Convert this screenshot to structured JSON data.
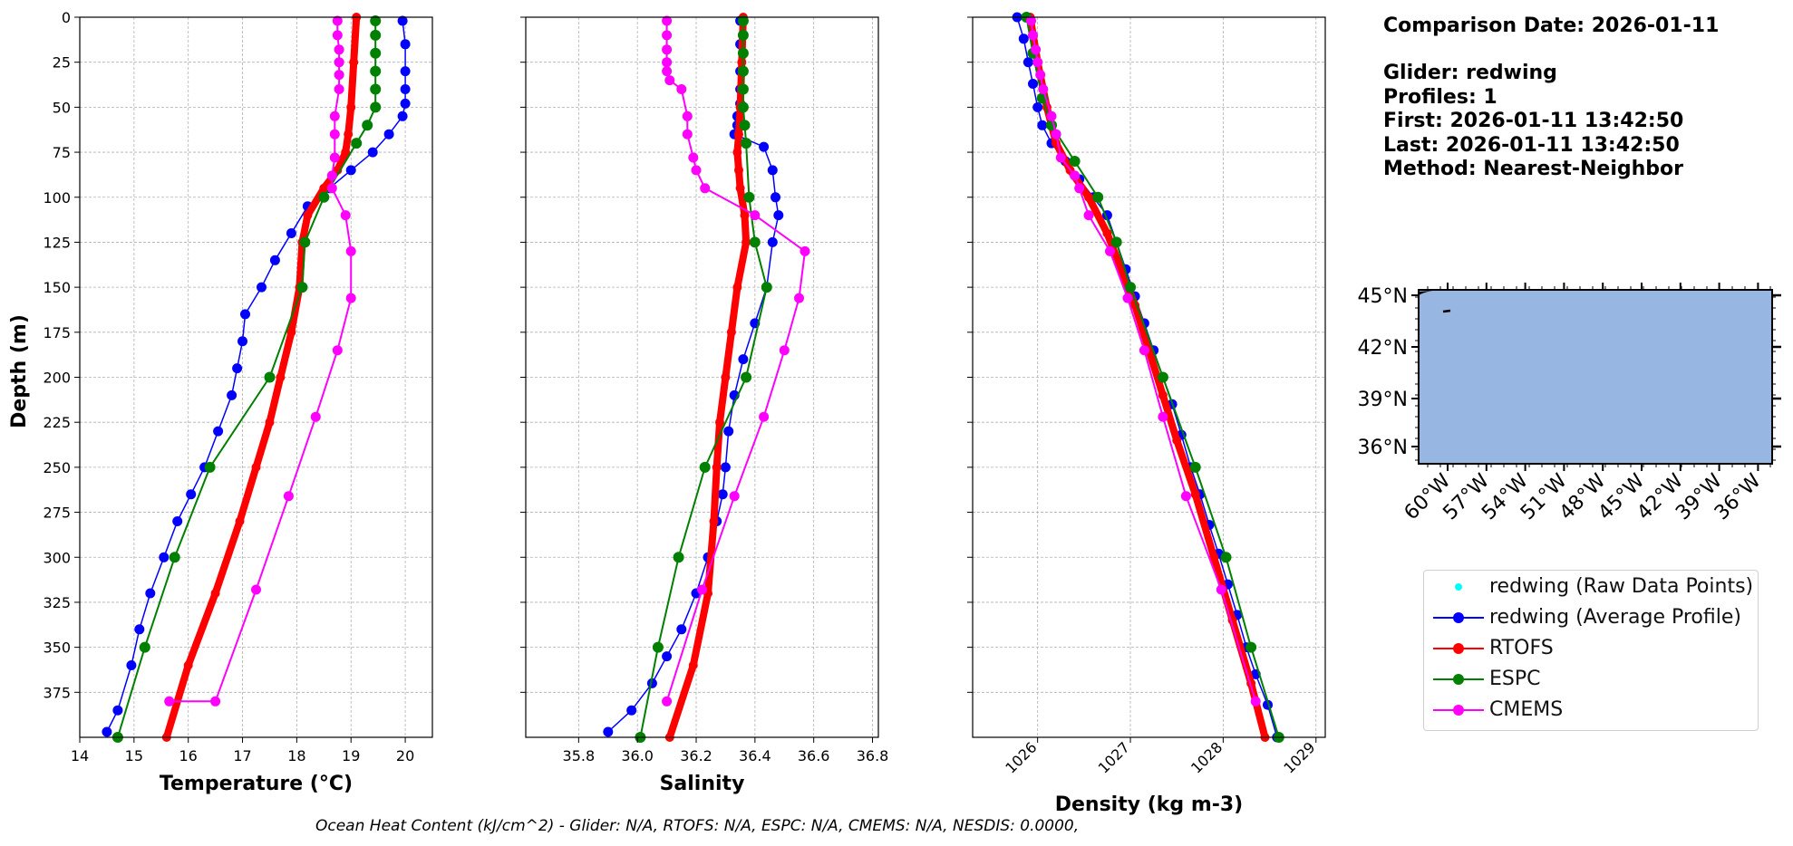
{
  "info": {
    "comparison_date": "Comparison Date: 2026-01-11",
    "glider": "Glider: redwing",
    "profiles": "Profiles: 1",
    "first": "First: 2026-01-11 13:42:50",
    "last": "Last: 2026-01-11 13:42:50",
    "method": "Method: Nearest-Neighbor"
  },
  "footer": "Ocean Heat Content (kJ/cm^2) - Glider: N/A,  RTOFS: N/A,  ESPC: N/A,  CMEMS: N/A,  NESDIS: 0.0000,",
  "legend": [
    {
      "label": "redwing (Raw Data Points)",
      "color": "#00ffff",
      "style": "dot"
    },
    {
      "label": "redwing (Average Profile)",
      "color": "#0000ff",
      "style": "line-marker"
    },
    {
      "label": "RTOFS",
      "color": "#ff0000",
      "style": "line-marker"
    },
    {
      "label": "ESPC",
      "color": "#008000",
      "style": "line-marker"
    },
    {
      "label": "CMEMS",
      "color": "#ff00ff",
      "style": "line-marker"
    }
  ],
  "colors": {
    "glider": "#0000ff",
    "rtofs": "#ff0000",
    "espc": "#008000",
    "cmems": "#ff00ff",
    "raw": "#00ffff",
    "map_ocean": "#97b6e1"
  },
  "chart_data": [
    {
      "type": "line",
      "xlabel": "Temperature (°C)",
      "ylabel": "Depth (m)",
      "xlim": [
        14,
        20.5
      ],
      "ylim": [
        400,
        0
      ],
      "xticks": [
        14,
        15,
        16,
        17,
        18,
        19,
        20
      ],
      "xtick_labels": [
        "14",
        "15",
        "16",
        "17",
        "18",
        "19",
        "20"
      ],
      "yticks": [
        0,
        25,
        50,
        75,
        100,
        125,
        150,
        175,
        200,
        225,
        250,
        275,
        300,
        325,
        350,
        375
      ],
      "grid": true,
      "series": [
        {
          "name": "redwing (Average Profile)",
          "color": "#0000ff",
          "marker_radius": 5.5,
          "stroke": 1.5,
          "x": [
            19.95,
            20.0,
            20.0,
            20.0,
            20.0,
            19.95,
            19.7,
            19.4,
            19.0,
            18.6,
            18.2,
            17.9,
            17.6,
            17.35,
            17.05,
            17.0,
            16.9,
            16.8,
            16.55,
            16.3,
            16.05,
            15.8,
            15.55,
            15.3,
            15.1,
            14.95,
            14.7,
            14.5
          ],
          "y": [
            2,
            15,
            30,
            40,
            48,
            55,
            65,
            75,
            85,
            95,
            105,
            120,
            135,
            150,
            165,
            180,
            195,
            210,
            230,
            250,
            265,
            280,
            300,
            320,
            340,
            360,
            385,
            397
          ]
        },
        {
          "name": "RTOFS",
          "color": "#ff0000",
          "marker_radius": 5,
          "stroke": 8,
          "x": [
            19.1,
            19.05,
            19.0,
            18.95,
            18.9,
            18.75,
            18.5,
            18.2,
            18.1,
            18.05,
            17.9,
            17.7,
            17.5,
            17.25,
            16.95,
            16.5,
            16.0,
            15.6
          ],
          "y": [
            0,
            25,
            50,
            65,
            75,
            85,
            95,
            110,
            125,
            150,
            175,
            200,
            225,
            250,
            280,
            320,
            360,
            400
          ]
        },
        {
          "name": "ESPC",
          "color": "#008000",
          "marker_radius": 6,
          "stroke": 2,
          "x": [
            19.45,
            19.45,
            19.45,
            19.45,
            19.45,
            19.45,
            19.3,
            19.1,
            18.5,
            18.15,
            18.1,
            17.5,
            16.4,
            15.75,
            15.2,
            14.7
          ],
          "y": [
            2,
            10,
            20,
            30,
            40,
            50,
            60,
            70,
            100,
            125,
            150,
            200,
            250,
            300,
            350,
            400
          ]
        },
        {
          "name": "CMEMS",
          "color": "#ff00ff",
          "marker_radius": 5.5,
          "stroke": 2,
          "x": [
            18.75,
            18.75,
            18.78,
            18.78,
            18.78,
            18.78,
            18.7,
            18.7,
            18.7,
            18.65,
            18.65,
            18.9,
            19.0,
            19.0,
            18.75,
            18.35,
            17.85,
            17.25,
            16.5,
            15.65
          ],
          "y": [
            2,
            10,
            18,
            25,
            32,
            40,
            55,
            65,
            78,
            88,
            95,
            110,
            130,
            156,
            185,
            222,
            266,
            318,
            380,
            380
          ]
        }
      ]
    },
    {
      "type": "line",
      "xlabel": "Salinity",
      "xlim": [
        35.62,
        36.82
      ],
      "ylim": [
        400,
        0
      ],
      "xticks": [
        35.8,
        36.0,
        36.2,
        36.4,
        36.6,
        36.8
      ],
      "xtick_labels": [
        "35.8",
        "36.0",
        "36.2",
        "36.4",
        "36.6",
        "36.8"
      ],
      "grid": true,
      "series": [
        {
          "name": "redwing (Average Profile)",
          "color": "#0000ff",
          "marker_radius": 5.5,
          "stroke": 1.5,
          "x": [
            36.35,
            36.35,
            36.35,
            36.35,
            36.35,
            36.34,
            36.34,
            36.33,
            36.43,
            36.46,
            36.47,
            36.48,
            36.46,
            36.44,
            36.4,
            36.36,
            36.33,
            36.31,
            36.3,
            36.29,
            36.27,
            36.24,
            36.2,
            36.15,
            36.1,
            36.05,
            35.98,
            35.9
          ],
          "y": [
            2,
            15,
            30,
            40,
            48,
            55,
            60,
            65,
            72,
            85,
            100,
            110,
            125,
            150,
            170,
            190,
            210,
            230,
            250,
            265,
            280,
            300,
            320,
            340,
            355,
            370,
            385,
            397
          ]
        },
        {
          "name": "RTOFS",
          "color": "#ff0000",
          "marker_radius": 5,
          "stroke": 8,
          "x": [
            36.36,
            36.355,
            36.35,
            36.345,
            36.34,
            36.345,
            36.35,
            36.365,
            36.37,
            36.34,
            36.32,
            36.3,
            36.28,
            36.27,
            36.26,
            36.24,
            36.19,
            36.11
          ],
          "y": [
            0,
            25,
            50,
            65,
            75,
            85,
            95,
            110,
            125,
            150,
            175,
            200,
            225,
            250,
            280,
            320,
            360,
            400
          ]
        },
        {
          "name": "ESPC",
          "color": "#008000",
          "marker_radius": 6,
          "stroke": 2,
          "x": [
            36.36,
            36.36,
            36.36,
            36.36,
            36.36,
            36.36,
            36.365,
            36.37,
            36.38,
            36.4,
            36.44,
            36.37,
            36.23,
            36.14,
            36.07,
            36.01
          ],
          "y": [
            2,
            10,
            20,
            30,
            40,
            50,
            60,
            70,
            100,
            125,
            150,
            200,
            250,
            300,
            350,
            400
          ]
        },
        {
          "name": "CMEMS",
          "color": "#ff00ff",
          "marker_radius": 5.5,
          "stroke": 2,
          "x": [
            36.1,
            36.1,
            36.1,
            36.1,
            36.1,
            36.11,
            36.15,
            36.17,
            36.17,
            36.19,
            36.2,
            36.23,
            36.4,
            36.57,
            36.55,
            36.5,
            36.43,
            36.33,
            36.22,
            36.1
          ],
          "y": [
            2,
            10,
            18,
            25,
            30,
            35,
            40,
            55,
            65,
            78,
            85,
            95,
            110,
            130,
            156,
            185,
            222,
            266,
            318,
            380
          ]
        }
      ]
    },
    {
      "type": "line",
      "xlabel": "Density (kg m-3)",
      "xlim": [
        1025.3,
        1029.1
      ],
      "ylim": [
        400,
        0
      ],
      "xticks": [
        1026,
        1027,
        1028,
        1029
      ],
      "xtick_labels": [
        "1026",
        "1027",
        "1028",
        "1029"
      ],
      "grid": true,
      "series": [
        {
          "name": "redwing (Average Profile)",
          "color": "#0000ff",
          "marker_radius": 5.5,
          "stroke": 1.5,
          "x": [
            1025.78,
            1025.85,
            1025.9,
            1025.95,
            1026.0,
            1026.05,
            1026.15,
            1026.3,
            1026.45,
            1026.6,
            1026.75,
            1026.85,
            1026.95,
            1027.05,
            1027.15,
            1027.25,
            1027.35,
            1027.45,
            1027.55,
            1027.65,
            1027.75,
            1027.85,
            1027.95,
            1028.05,
            1028.15,
            1028.25,
            1028.35,
            1028.48,
            1028.58
          ],
          "y": [
            0,
            12,
            25,
            37,
            50,
            60,
            70,
            80,
            90,
            100,
            110,
            125,
            140,
            155,
            170,
            185,
            200,
            215,
            232,
            250,
            265,
            282,
            298,
            315,
            332,
            350,
            365,
            382,
            400
          ]
        },
        {
          "name": "RTOFS",
          "color": "#ff0000",
          "marker_radius": 5,
          "stroke": 8,
          "x": [
            1025.92,
            1026.0,
            1026.1,
            1026.2,
            1026.35,
            1026.55,
            1026.75,
            1026.9,
            1027.05,
            1027.2,
            1027.35,
            1027.5,
            1027.7,
            1027.9,
            1028.1,
            1028.3,
            1028.45
          ],
          "y": [
            0,
            25,
            50,
            70,
            85,
            100,
            120,
            140,
            160,
            185,
            210,
            235,
            265,
            300,
            335,
            370,
            400
          ]
        },
        {
          "name": "ESPC",
          "color": "#008000",
          "marker_radius": 6,
          "stroke": 2,
          "x": [
            1025.88,
            1025.95,
            1026.05,
            1026.15,
            1026.4,
            1026.65,
            1026.85,
            1027.0,
            1027.35,
            1027.7,
            1028.03,
            1028.3,
            1028.6
          ],
          "y": [
            0,
            20,
            45,
            60,
            80,
            100,
            125,
            150,
            200,
            250,
            300,
            350,
            400
          ]
        },
        {
          "name": "CMEMS",
          "color": "#ff00ff",
          "marker_radius": 5.5,
          "stroke": 2,
          "x": [
            1025.93,
            1025.95,
            1025.98,
            1026.0,
            1026.03,
            1026.06,
            1026.15,
            1026.2,
            1026.25,
            1026.4,
            1026.45,
            1026.55,
            1026.78,
            1026.97,
            1027.15,
            1027.35,
            1027.6,
            1027.98,
            1028.35
          ],
          "y": [
            2,
            10,
            18,
            25,
            32,
            40,
            55,
            65,
            78,
            88,
            95,
            110,
            130,
            156,
            185,
            222,
            266,
            318,
            380
          ]
        }
      ]
    }
  ],
  "map": {
    "lat_labels": [
      "45°N",
      "42°N",
      "39°N",
      "36°N"
    ],
    "lon_labels": [
      "60°W",
      "57°W",
      "54°W",
      "51°W",
      "48°W",
      "45°W",
      "42°W",
      "39°W",
      "36°W"
    ]
  }
}
